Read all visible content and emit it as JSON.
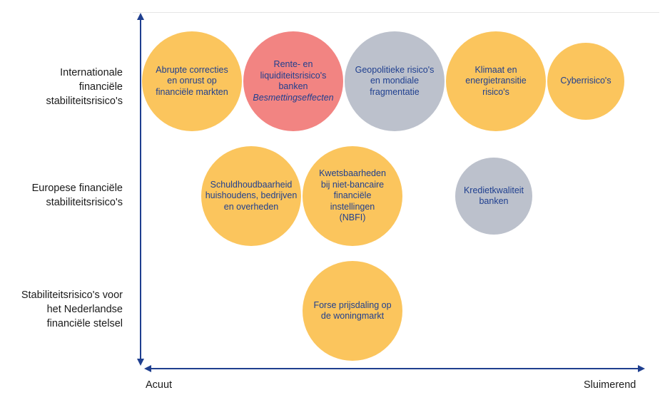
{
  "colors": {
    "axis": "#1f3f8f",
    "text": "#1f3f8f",
    "label": "#1a1a1a",
    "acute": "#fbc55d",
    "contagion": "#f28482",
    "latent": "#bcc1cc"
  },
  "axes": {
    "x_start_label": "Acuut",
    "x_end_label": "Sluimerend"
  },
  "rows": [
    {
      "lines": [
        "Internationale",
        "financiële",
        "stabiliteitsrisico's"
      ]
    },
    {
      "lines": [
        "Europese financiële",
        "stabiliteitsrisico's"
      ]
    },
    {
      "lines": [
        "Stabiliteitsrisico's voor",
        "het Nederlandse",
        "financiële stelsel"
      ]
    }
  ],
  "bubbles": [
    {
      "row": 0,
      "color": "acute",
      "lines": [
        "Abrupte correcties",
        "en onrust op",
        "financiële markten"
      ]
    },
    {
      "row": 0,
      "color": "contagion",
      "lines": [
        "Rente- en",
        "liquiditeitsrisico's",
        "banken"
      ],
      "italic_line": "Besmettingseffecten"
    },
    {
      "row": 0,
      "color": "latent",
      "lines": [
        "Geopolitieke risico's",
        "en mondiale",
        "fragmentatie"
      ]
    },
    {
      "row": 0,
      "color": "acute",
      "lines": [
        "Klimaat en",
        "energietransitie",
        "risico's"
      ]
    },
    {
      "row": 0,
      "color": "acute",
      "lines": [
        "Cyberrisico's"
      ]
    },
    {
      "row": 1,
      "color": "acute",
      "lines": [
        "Schuldhoudbaarheid",
        "huishoudens, bedrijven",
        "en overheden"
      ]
    },
    {
      "row": 1,
      "color": "acute",
      "lines": [
        "Kwetsbaarheden",
        "bij niet-bancaire",
        "financiële",
        "instellingen",
        "(NBFI)"
      ]
    },
    {
      "row": 1,
      "color": "latent",
      "lines": [
        "Kredietkwaliteit",
        "banken"
      ]
    },
    {
      "row": 2,
      "color": "acute",
      "lines": [
        "Forse prijsdaling op",
        "de woningmarkt"
      ]
    }
  ]
}
